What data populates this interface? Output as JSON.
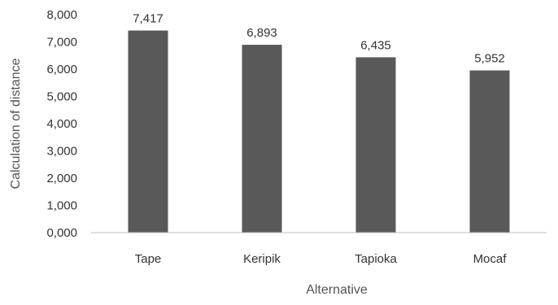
{
  "chart_data": {
    "type": "bar",
    "title": "",
    "xlabel": "Alternative",
    "ylabel": "Calculation of distance",
    "categories": [
      "Tape",
      "Keripik",
      "Tapioka",
      "Mocaf"
    ],
    "values": [
      7.417,
      6.893,
      6.435,
      5.952
    ],
    "data_labels": [
      "7,417",
      "6,893",
      "6,435",
      "5,952"
    ],
    "y_ticks": [
      0,
      1,
      2,
      3,
      4,
      5,
      6,
      7,
      8
    ],
    "y_tick_labels": [
      "0,000",
      "1,000",
      "2,000",
      "3,000",
      "4,000",
      "5,000",
      "6,000",
      "7,000",
      "8,000"
    ],
    "ylim": [
      0,
      8
    ],
    "grid": false,
    "legend": "none",
    "bar_color": "#595959"
  }
}
